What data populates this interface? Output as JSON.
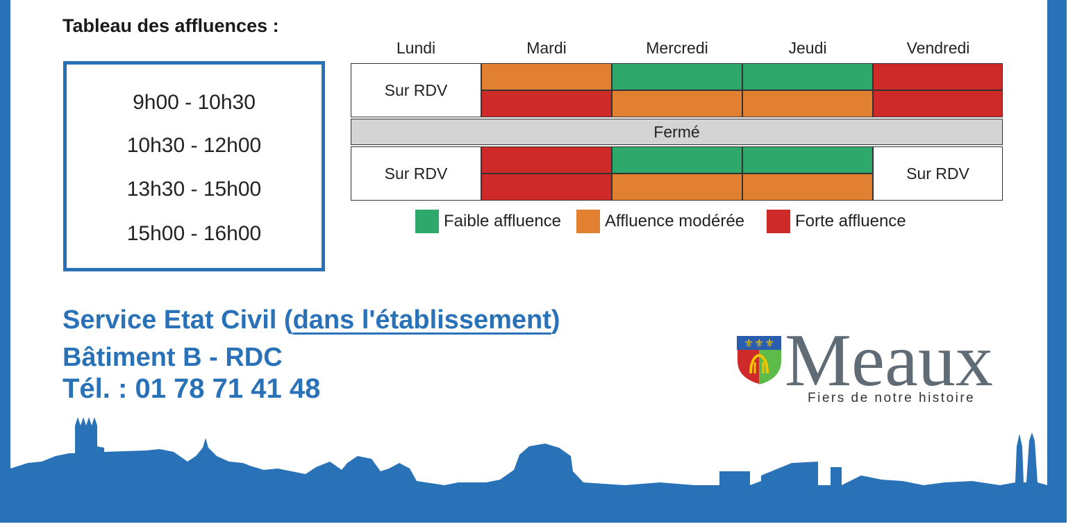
{
  "title": "Tableau des affluences :",
  "hours": [
    "9h00  -  10h30",
    "10h30  -  12h00",
    "13h30  -  15h00",
    "15h00 - 16h00"
  ],
  "days": [
    "Lundi",
    "Mardi",
    "Mercredi",
    "Jeudi",
    "Vendredi"
  ],
  "schedule": {
    "rdv_label": "Sur RDV",
    "closed_label": "Fermé",
    "morning": {
      "Lundi": [
        "Sur RDV",
        "Sur RDV"
      ],
      "Mardi": [
        "moderee",
        "forte"
      ],
      "Mercredi": [
        "faible",
        "moderee"
      ],
      "Jeudi": [
        "faible",
        "moderee"
      ],
      "Vendredi": [
        "forte",
        "forte"
      ]
    },
    "afternoon": {
      "Lundi": [
        "Sur RDV",
        "Sur RDV"
      ],
      "Mardi": [
        "forte",
        "forte"
      ],
      "Mercredi": [
        "faible",
        "moderee"
      ],
      "Jeudi": [
        "faible",
        "moderee"
      ],
      "Vendredi": [
        "Sur RDV",
        "Sur RDV"
      ]
    }
  },
  "legend": [
    {
      "key": "faible",
      "label": "Faible affluence",
      "color": "#2ea86b"
    },
    {
      "key": "moderee",
      "label": "Affluence modérée",
      "color": "#e08030"
    },
    {
      "key": "forte",
      "label": "Forte affluence",
      "color": "#cf2a2a"
    }
  ],
  "service": {
    "name_prefix": "Service Etat Civil (",
    "name_link": "dans l'établissement",
    "name_suffix": ")",
    "building": "Bâtiment B - RDC",
    "phone": "Tél. : 01 78 71 41 48"
  },
  "logo": {
    "name": "Meaux",
    "tagline": "Fiers de notre histoire",
    "crest_icon": "coat-of-arms-icon"
  },
  "colors": {
    "brand_blue": "#2a72b8",
    "logo_gray": "#5f6b75"
  }
}
